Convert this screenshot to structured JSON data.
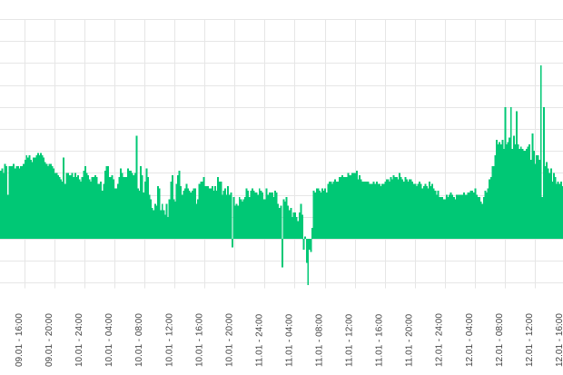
{
  "chart_data": {
    "type": "bar",
    "title": "",
    "xlabel": "",
    "ylabel": "",
    "y_tick_labels_visible": false,
    "grid": true,
    "bar_color": "#00C875",
    "gridline_color": "#E6E6E6",
    "ylim": [
      -2.25,
      10.25
    ],
    "y_gridlines": [
      -2,
      -1,
      0,
      1,
      2,
      3,
      4,
      5,
      6,
      7,
      8,
      9,
      10
    ],
    "x_tick_labels": [
      "09.01 - 16:00",
      "09.01 - 20:00",
      "10.01 - 24:00",
      "10.01 - 04:00",
      "10.01 - 08:00",
      "10.01 - 12:00",
      "10.01 - 16:00",
      "10.01 - 20:00",
      "11.01 - 24:00",
      "11.01 - 04:00",
      "11.01 - 08:00",
      "11.01 - 12:00",
      "11.01 - 16:00",
      "11.01 - 20:00",
      "12.01 - 24:00",
      "12.01 - 04:00",
      "12.01 - 08:00",
      "12.01 - 12:00",
      "12.01 - 16:00"
    ],
    "values": [
      3.1,
      3.2,
      3.0,
      3.4,
      3.3,
      2.0,
      3.3,
      3.3,
      3.3,
      3.4,
      3.2,
      3.3,
      3.3,
      3.2,
      3.3,
      3.3,
      3.4,
      3.6,
      3.8,
      3.7,
      3.8,
      3.6,
      3.5,
      3.7,
      3.7,
      3.8,
      3.9,
      3.8,
      3.9,
      3.8,
      3.7,
      3.5,
      3.4,
      3.3,
      3.4,
      3.4,
      3.3,
      3.2,
      3.0,
      3.0,
      2.9,
      2.8,
      2.7,
      2.6,
      3.7,
      2.5,
      3.0,
      3.0,
      2.9,
      2.9,
      3.0,
      2.8,
      3.0,
      2.8,
      2.9,
      2.7,
      2.6,
      2.8,
      3.1,
      3.3,
      3.0,
      2.9,
      2.7,
      2.6,
      2.8,
      2.8,
      2.9,
      2.8,
      2.5,
      2.5,
      2.6,
      2.2,
      2.5,
      3.1,
      3.3,
      3.3,
      2.8,
      2.8,
      2.9,
      2.7,
      2.3,
      2.3,
      2.5,
      2.8,
      3.2,
      3.0,
      2.8,
      2.8,
      2.8,
      3.2,
      3.1,
      3.1,
      3.0,
      2.9,
      3.0,
      4.7,
      2.3,
      2.2,
      3.3,
      2.9,
      2.1,
      2.6,
      3.2,
      2.8,
      2.0,
      1.8,
      1.4,
      1.3,
      1.6,
      1.5,
      2.4,
      2.3,
      1.3,
      1.6,
      1.3,
      1.1,
      1.6,
      1.0,
      1.8,
      2.6,
      2.9,
      1.8,
      1.7,
      2.5,
      2.9,
      3.1,
      2.4,
      2.0,
      2.2,
      2.3,
      2.5,
      2.3,
      2.2,
      2.1,
      2.2,
      2.3,
      2.3,
      1.6,
      1.8,
      2.5,
      2.6,
      2.6,
      2.8,
      2.4,
      2.4,
      2.4,
      2.3,
      2.3,
      2.4,
      2.2,
      2.4,
      2.2,
      2.8,
      2.6,
      2.6,
      2.0,
      2.2,
      2.3,
      2.0,
      2.4,
      2.0,
      2.1,
      -0.4,
      1.9,
      1.5,
      1.6,
      1.5,
      1.9,
      1.8,
      1.7,
      1.8,
      1.9,
      2.3,
      2.2,
      1.9,
      2.2,
      2.3,
      2.2,
      2.1,
      2.1,
      2.0,
      2.3,
      2.2,
      2.1,
      1.8,
      1.8,
      2.3,
      2.0,
      2.1,
      2.1,
      2.1,
      1.9,
      2.2,
      2.1,
      1.6,
      1.4,
      1.5,
      -1.3,
      1.8,
      1.7,
      1.9,
      1.5,
      1.3,
      1.4,
      1.0,
      1.2,
      1.2,
      1.0,
      0.8,
      1.2,
      1.6,
      1.1,
      -0.5,
      0.1,
      -1.1,
      -2.1,
      -0.5,
      -0.6,
      0.5,
      2.2,
      2.1,
      2.3,
      2.3,
      2.2,
      2.1,
      2.3,
      2.2,
      2.3,
      2.1,
      2.5,
      2.6,
      2.6,
      2.5,
      2.6,
      2.7,
      2.6,
      2.6,
      2.8,
      2.8,
      2.9,
      2.8,
      2.8,
      2.8,
      3.0,
      2.9,
      2.9,
      3.0,
      3.0,
      3.0,
      3.1,
      2.7,
      2.9,
      2.7,
      2.6,
      2.6,
      2.6,
      2.6,
      2.6,
      2.5,
      2.5,
      2.5,
      2.6,
      2.5,
      2.6,
      2.5,
      2.5,
      2.4,
      2.5,
      2.5,
      2.6,
      2.7,
      2.7,
      2.6,
      2.8,
      2.7,
      2.9,
      2.8,
      2.8,
      2.7,
      3.0,
      2.8,
      2.7,
      2.6,
      2.8,
      2.7,
      2.6,
      2.7,
      2.7,
      2.6,
      2.5,
      2.5,
      2.4,
      2.5,
      2.6,
      2.5,
      2.3,
      2.4,
      2.5,
      2.4,
      2.3,
      2.6,
      2.4,
      2.5,
      2.3,
      2.2,
      2.0,
      2.2,
      1.9,
      1.9,
      1.9,
      1.8,
      1.8,
      2.0,
      1.9,
      2.0,
      2.1,
      2.0,
      1.9,
      1.8,
      2.0,
      2.0,
      2.0,
      2.0,
      2.0,
      2.1,
      2.0,
      2.0,
      2.1,
      2.1,
      2.2,
      2.2,
      2.1,
      2.3,
      2.0,
      1.9,
      1.9,
      1.7,
      1.6,
      1.9,
      2.2,
      2.1,
      2.3,
      2.7,
      2.8,
      3.3,
      3.3,
      3.8,
      4.5,
      4.3,
      4.4,
      4.3,
      4.5,
      4.1,
      6.0,
      4.3,
      4.4,
      4.6,
      6.0,
      4.1,
      4.7,
      4.3,
      5.8,
      4.3,
      4.1,
      4.2,
      4.1,
      4.0,
      4.0,
      4.1,
      4.2,
      4.3,
      3.6,
      4.8,
      4.0,
      3.4,
      3.8,
      3.8,
      3.6,
      7.9,
      1.9,
      6.0,
      3.3,
      3.5,
      3.2,
      3.0,
      3.2,
      2.6,
      3.0,
      2.8,
      2.5,
      2.6,
      2.5,
      2.6,
      2.4
    ]
  }
}
